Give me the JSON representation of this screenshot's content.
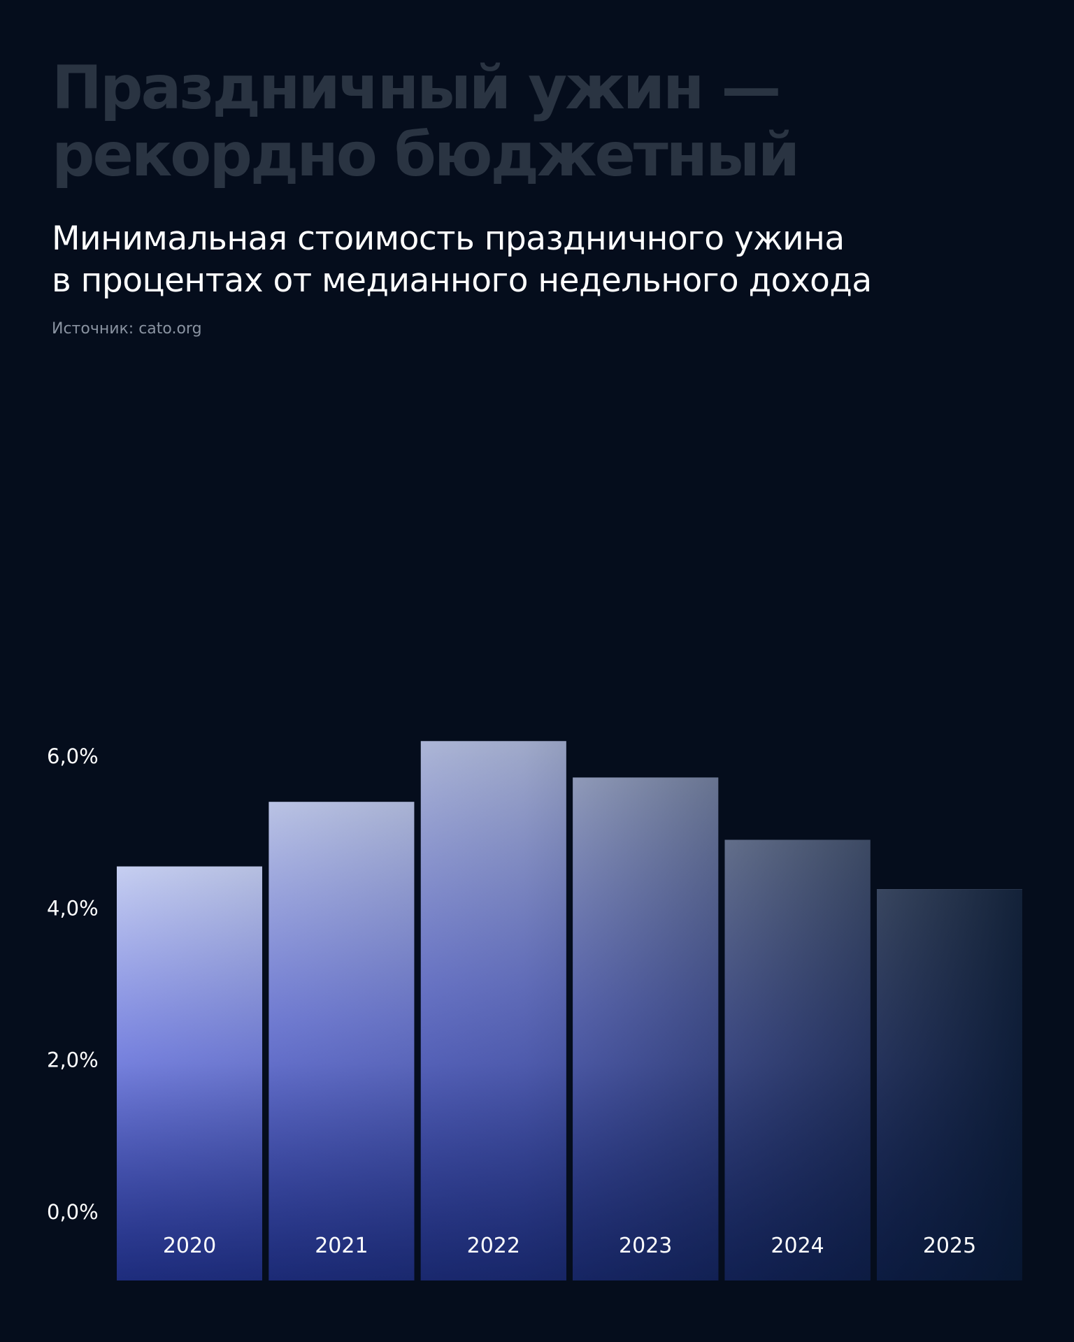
{
  "header": {
    "headline_line1": "Праздничный ужин —",
    "headline_line2": "рекордно бюджетный",
    "subtitle_line1": "Минимальная стоимость праздничного ужина",
    "subtitle_line2": "в процентах от медианного недельного дохода",
    "source": "Источник: cato.org"
  },
  "chart_data": {
    "type": "bar",
    "title": "",
    "xlabel": "",
    "ylabel": "",
    "categories": [
      "2020",
      "2021",
      "2022",
      "2023",
      "2024",
      "2025"
    ],
    "values": [
      4.55,
      5.4,
      6.2,
      5.72,
      4.9,
      4.25
    ],
    "ylim": [
      0,
      6
    ],
    "yticks": [
      {
        "value": 0,
        "label": "0,0%"
      },
      {
        "value": 2,
        "label": "2,0%"
      },
      {
        "value": 4,
        "label": "4,0%"
      },
      {
        "value": 6,
        "label": "6,0%"
      }
    ],
    "grid": false,
    "legend": "none",
    "colors": {
      "background": "#050d1c",
      "bar_bottom_left": "#3b49e0",
      "bar_mid": "#8e98ff",
      "bar_top": "#d4dcff",
      "bar_bottom_right": "#06152b"
    }
  }
}
